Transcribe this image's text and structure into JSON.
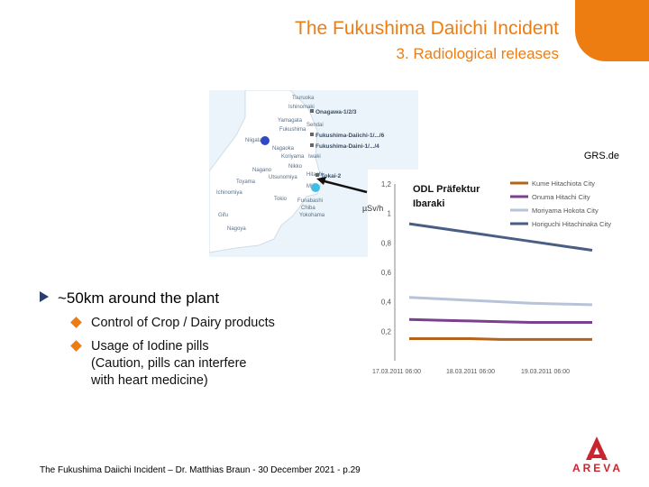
{
  "slide": {
    "title": "The Fukushima Daiichi Incident",
    "subtitle": "3. Radiological releases",
    "accent_color": "#ee7d11",
    "bullet_color": "#2b3f6b",
    "bullets": [
      {
        "text": "~50km around the plant"
      }
    ],
    "sub_bullets": [
      {
        "lines": [
          "Control of Crop / Dairy products"
        ]
      },
      {
        "lines": [
          "Usage of Iodine pills",
          "(Caution, pills can interfere",
          "with heart medicine)"
        ]
      }
    ],
    "footer": "The Fukushima Daiichi Incident – Dr. Matthias Braun - 30 December 2021 - p.29",
    "logo": {
      "text": "AREVA",
      "color": "#c8262e"
    }
  },
  "map": {
    "cities": [
      "Tsuruoka",
      "Ishinomaki",
      "Yamagata",
      "Sendai",
      "Niigata",
      "Fukushima",
      "Nagaoka",
      "Koriyama",
      "Iwaki",
      "Nagano",
      "Nikko",
      "Hitachi",
      "Utsunomiya",
      "Tokio",
      "Funabashi",
      "Chiba",
      "Yokohama",
      "Mito",
      "Toyama",
      "Nagoya",
      "Gifu",
      "Ichinomiya"
    ],
    "plants": [
      "Onagawa-1/2/3",
      "Fukushima-Daiichi-1/.../6",
      "Fukushima-Daini-1/.../4",
      "Tokai-2"
    ],
    "source": "GRS.de"
  },
  "chart_data": {
    "type": "line",
    "title": "ODL Präfektur Ibaraki",
    "ylabel": "µSv/h",
    "ylim": [
      0.0,
      1.2
    ],
    "yticks": [
      "1,2",
      "1",
      "0,8",
      "0,6",
      "0,4",
      "0,2"
    ],
    "xticks": [
      "17.03.2011 06:00",
      "18.03.2011 06:00",
      "19.03.2011 06:00"
    ],
    "series": [
      {
        "name": "Kume Hitachiota City",
        "color": "#b3641a",
        "values": [
          0.15,
          0.15,
          0.15,
          0.145,
          0.145,
          0.145,
          0.145
        ]
      },
      {
        "name": "Onuma Hitachi City",
        "color": "#7a3f8f",
        "values": [
          0.28,
          0.275,
          0.27,
          0.265,
          0.26,
          0.26,
          0.26
        ]
      },
      {
        "name": "Moriyama Hokota City",
        "color": "#b7c4d8",
        "values": [
          0.43,
          0.42,
          0.41,
          0.4,
          0.39,
          0.385,
          0.38
        ]
      },
      {
        "name": "Horiguchi Hitachinaka City",
        "color": "#4a5e85",
        "values": [
          0.93,
          0.9,
          0.87,
          0.84,
          0.81,
          0.78,
          0.75
        ]
      }
    ]
  }
}
